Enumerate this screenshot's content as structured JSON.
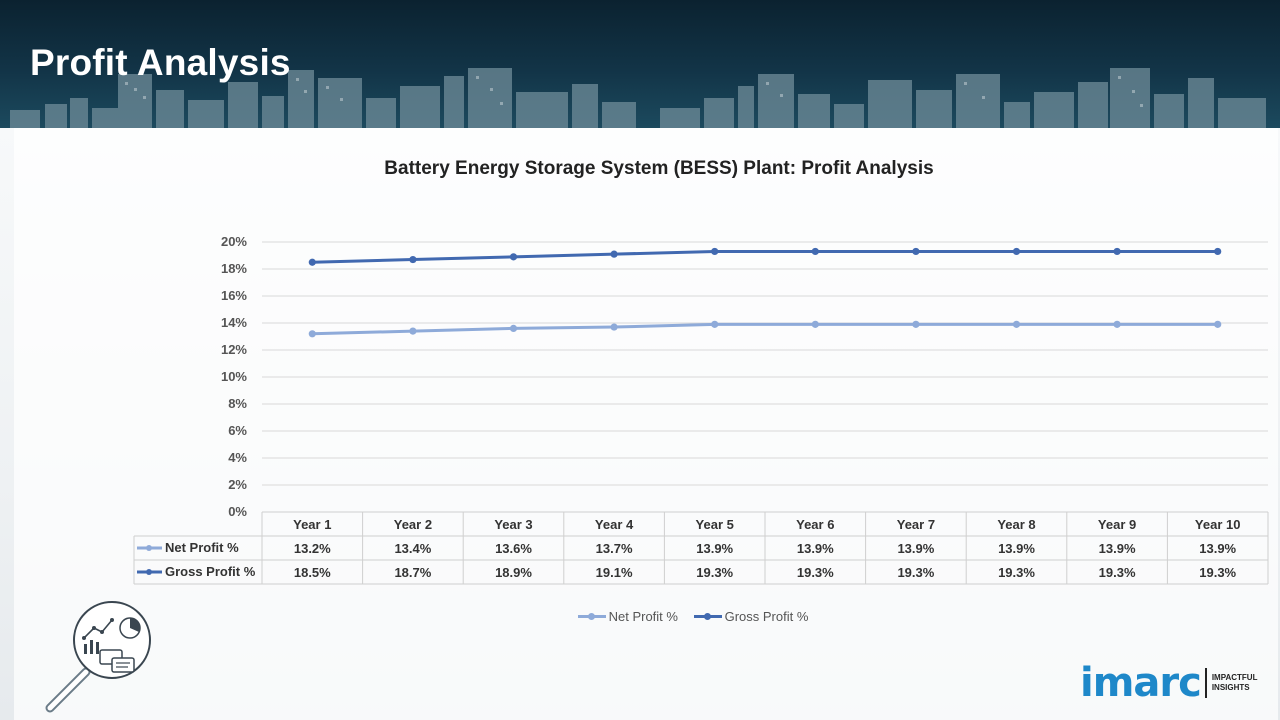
{
  "page": {
    "title": "Profit Analysis"
  },
  "chart_data": {
    "type": "line",
    "title": "Battery Energy Storage System (BESS) Plant: Profit Analysis",
    "categories": [
      "Year 1",
      "Year 2",
      "Year 3",
      "Year 4",
      "Year 5",
      "Year 6",
      "Year 7",
      "Year 8",
      "Year 9",
      "Year 10"
    ],
    "series": [
      {
        "name": "Net Profit %",
        "color": "#8eaad9",
        "values": [
          13.2,
          13.4,
          13.6,
          13.7,
          13.9,
          13.9,
          13.9,
          13.9,
          13.9,
          13.9
        ],
        "labels": [
          "13.2%",
          "13.4%",
          "13.6%",
          "13.7%",
          "13.9%",
          "13.9%",
          "13.9%",
          "13.9%",
          "13.9%",
          "13.9%"
        ]
      },
      {
        "name": "Gross Profit %",
        "color": "#4169b0",
        "values": [
          18.5,
          18.7,
          18.9,
          19.1,
          19.3,
          19.3,
          19.3,
          19.3,
          19.3,
          19.3
        ],
        "labels": [
          "18.5%",
          "18.7%",
          "18.9%",
          "19.1%",
          "19.3%",
          "19.3%",
          "19.3%",
          "19.3%",
          "19.3%",
          "19.3%"
        ]
      }
    ],
    "ylim": [
      0,
      20
    ],
    "yticks": [
      0,
      2,
      4,
      6,
      8,
      10,
      12,
      14,
      16,
      18,
      20
    ],
    "ytick_labels": [
      "0%",
      "2%",
      "4%",
      "6%",
      "8%",
      "10%",
      "12%",
      "14%",
      "16%",
      "18%",
      "20%"
    ],
    "grid": true,
    "legend_position": "bottom",
    "data_table": true
  },
  "branding": {
    "logo_text": "imarc",
    "logo_tagline_1": "IMPACTFUL",
    "logo_tagline_2": "INSIGHTS",
    "accent": "#1e88c9"
  }
}
